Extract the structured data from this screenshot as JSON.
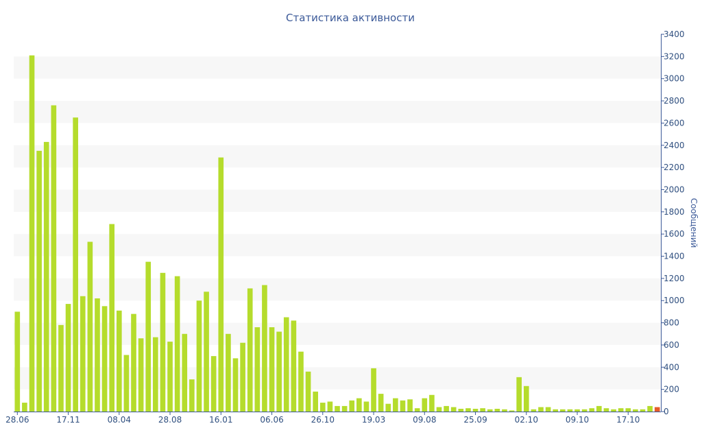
{
  "chart_data": {
    "type": "bar",
    "title": "Статистика активности",
    "ylabel": "Сообщений",
    "xlabel": "",
    "ylim": [
      0,
      3400
    ],
    "y_ticks": [
      0,
      200,
      400,
      600,
      800,
      1000,
      1200,
      1400,
      1600,
      1800,
      2000,
      2200,
      2400,
      2600,
      2800,
      3000,
      3200,
      3400
    ],
    "x_tick_labels": [
      {
        "label": "28.06",
        "index": 0
      },
      {
        "label": "17.11",
        "index": 7
      },
      {
        "label": "08.04",
        "index": 14
      },
      {
        "label": "28.08",
        "index": 21
      },
      {
        "label": "16.01",
        "index": 28
      },
      {
        "label": "06.06",
        "index": 35
      },
      {
        "label": "26.10",
        "index": 42
      },
      {
        "label": "19.03",
        "index": 49
      },
      {
        "label": "09.08",
        "index": 56
      },
      {
        "label": "25.09",
        "index": 63
      },
      {
        "label": "02.10",
        "index": 70
      },
      {
        "label": "09.10",
        "index": 77
      },
      {
        "label": "17.10",
        "index": 84
      }
    ],
    "values": [
      900,
      80,
      3210,
      2350,
      2430,
      2760,
      780,
      970,
      2650,
      1040,
      1530,
      1020,
      950,
      1690,
      910,
      510,
      880,
      660,
      1350,
      670,
      1250,
      630,
      1220,
      700,
      290,
      1000,
      1080,
      500,
      2290,
      700,
      480,
      620,
      1110,
      760,
      1140,
      760,
      720,
      850,
      820,
      540,
      360,
      180,
      80,
      90,
      50,
      50,
      100,
      120,
      90,
      390,
      160,
      70,
      120,
      100,
      110,
      30,
      120,
      150,
      40,
      50,
      40,
      25,
      30,
      25,
      30,
      20,
      25,
      20,
      10,
      310,
      230,
      20,
      40,
      40,
      20,
      20,
      20,
      20,
      20,
      30,
      50,
      30,
      20,
      30,
      30,
      20,
      20,
      50,
      40
    ],
    "highlight_index": 88,
    "colors": {
      "bar": "#b5dc2c",
      "highlight": "#e55c2a",
      "band": "#f7f7f7",
      "axis": "#3b5998",
      "text": "#2f4f7f"
    },
    "grid": "alternating bands",
    "y_axis_side": "right"
  }
}
